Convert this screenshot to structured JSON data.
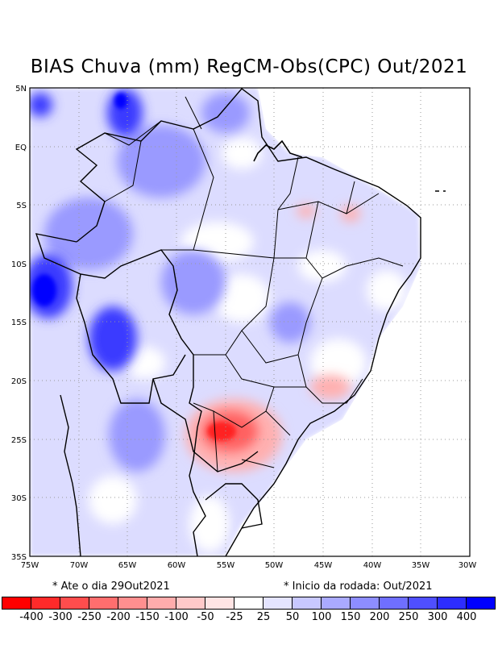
{
  "title": "BIAS Chuva (mm) RegCM-Obs(CPC) Out/2021",
  "map": {
    "lon_labels": [
      "75W",
      "70W",
      "65W",
      "60W",
      "55W",
      "50W",
      "45W",
      "40W",
      "35W",
      "30W"
    ],
    "lat_labels": [
      "5N",
      "EQ",
      "5S",
      "10S",
      "15S",
      "20S",
      "25S",
      "30S",
      "35S"
    ],
    "features": [
      "country-borders",
      "state-borders",
      "coastline",
      "bias-field"
    ]
  },
  "notes": {
    "left": "* Ate o dia 29Out2021",
    "right": "* Inicio da rodada: Out/2021"
  },
  "legend": {
    "labels": [
      "-400",
      "-300",
      "-250",
      "-200",
      "-150",
      "-100",
      "-50",
      "-25",
      "25",
      "50",
      "100",
      "150",
      "200",
      "250",
      "300",
      "400"
    ],
    "colors": [
      "#ff0000",
      "#ff2a2a",
      "#ff4d4d",
      "#ff6e6e",
      "#ff8f8f",
      "#ffacac",
      "#ffc9c9",
      "#ffe4e4",
      "#ffffff",
      "#e4e4ff",
      "#c8c8ff",
      "#aaaaff",
      "#8d8dff",
      "#6f6fff",
      "#4f4fff",
      "#2d2dff",
      "#0000ff"
    ]
  },
  "colors": {
    "grid": "#999999",
    "border": "#000000"
  }
}
